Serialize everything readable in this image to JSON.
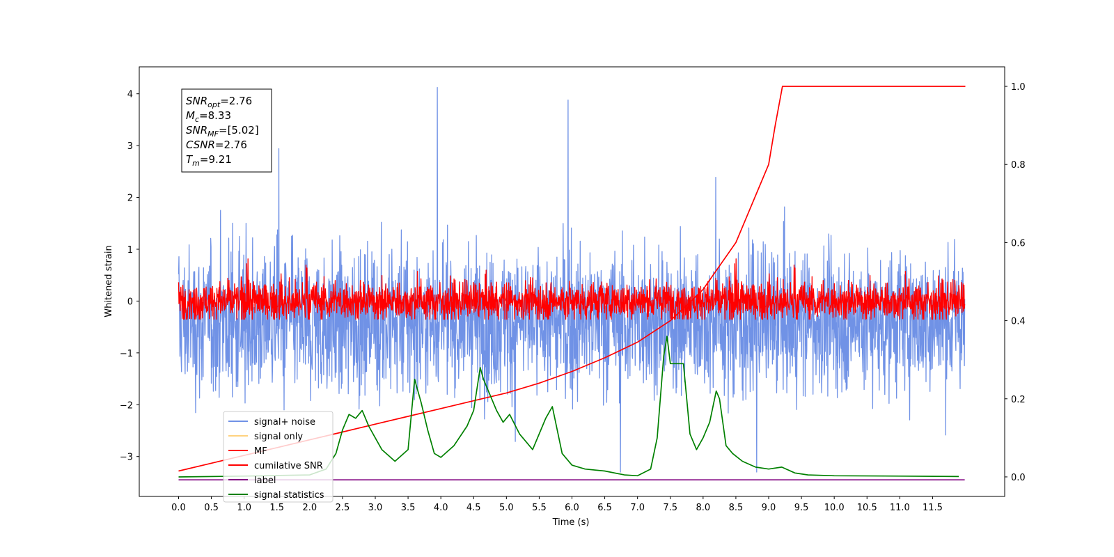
{
  "chart_data": {
    "type": "line",
    "xlabel": "Time (s)",
    "ylabel": "Whitened strain",
    "xlim": [
      -0.6,
      12.6
    ],
    "ylim": [
      -3.77,
      4.52
    ],
    "y2lim": [
      -0.05,
      1.05
    ],
    "x_ticks": [
      "0.0",
      "0.5",
      "1.0",
      "1.5",
      "2.0",
      "2.5",
      "3.0",
      "3.5",
      "4.0",
      "4.5",
      "5.0",
      "5.5",
      "6.0",
      "6.5",
      "7.0",
      "7.5",
      "8.0",
      "8.5",
      "9.0",
      "9.5",
      "10.0",
      "10.5",
      "11.0",
      "11.5"
    ],
    "y_ticks": [
      "−3",
      "−2",
      "−1",
      "0",
      "1",
      "2",
      "3",
      "4"
    ],
    "y2_ticks": [
      "0.0",
      "0.2",
      "0.4",
      "0.6",
      "0.8",
      "1.0"
    ],
    "annotation": {
      "lines": [
        {
          "sym": "SNR",
          "sub": "opt",
          "value": "=2.76"
        },
        {
          "sym": "M",
          "sub": "c",
          "value": "=8.33"
        },
        {
          "sym": "SNR",
          "sub": "MF",
          "value": "=[5.02]"
        },
        {
          "sym": "CSNR",
          "sub": "",
          "value": "=2.76"
        },
        {
          "sym": "T",
          "sub": "m",
          "value": "=9.21"
        }
      ]
    },
    "legend": {
      "location": "lower-left",
      "entries": [
        {
          "label": "signal+ noise",
          "color": "#7092e6"
        },
        {
          "label": "signal only",
          "color": "#ffd27f"
        },
        {
          "label": "MF",
          "color": "#ff0000"
        },
        {
          "label": "cumilative SNR",
          "color": "#ff0000"
        },
        {
          "label": "label",
          "color": "#800080"
        },
        {
          "label": "signal statistics",
          "color": "#008000"
        }
      ]
    },
    "series": [
      {
        "name": "signal+ noise",
        "axis": "left",
        "kind": "noise",
        "x_range": [
          0.0,
          11.99
        ],
        "center": -0.4,
        "typical_range": [
          -1.3,
          1.3
        ],
        "extreme_range": [
          -3.3,
          4.2
        ],
        "color": "#7092e6"
      },
      {
        "name": "MF",
        "axis": "left",
        "kind": "noise",
        "x_range": [
          0.0,
          11.99
        ],
        "center": 0.0,
        "typical_range": [
          -0.3,
          0.4
        ],
        "extreme_range": [
          -0.35,
          0.95
        ],
        "color": "#ff0000"
      },
      {
        "name": "cumilative SNR",
        "axis": "right",
        "x": [
          0.0,
          0.5,
          1.0,
          1.5,
          2.0,
          2.5,
          3.0,
          3.5,
          4.0,
          4.5,
          5.0,
          5.5,
          6.0,
          6.5,
          7.0,
          7.5,
          8.0,
          8.5,
          9.0,
          9.1,
          9.21,
          12.0
        ],
        "values": [
          0.015,
          0.035,
          0.055,
          0.075,
          0.095,
          0.115,
          0.135,
          0.155,
          0.175,
          0.195,
          0.215,
          0.24,
          0.27,
          0.305,
          0.345,
          0.4,
          0.48,
          0.6,
          0.8,
          0.9,
          1.0,
          1.0
        ],
        "color": "#ff0000"
      },
      {
        "name": "label",
        "axis": "left",
        "x": [
          0.0,
          11.99
        ],
        "values": [
          -3.45,
          -3.45
        ],
        "color": "#800080"
      },
      {
        "name": "signal statistics",
        "axis": "right",
        "x": [
          0.0,
          1.0,
          2.0,
          2.25,
          2.4,
          2.5,
          2.6,
          2.7,
          2.8,
          2.9,
          3.0,
          3.1,
          3.3,
          3.5,
          3.6,
          3.7,
          3.8,
          3.9,
          4.0,
          4.2,
          4.4,
          4.5,
          4.6,
          4.65,
          4.75,
          4.85,
          4.95,
          5.05,
          5.2,
          5.4,
          5.6,
          5.7,
          5.85,
          6.0,
          6.2,
          6.5,
          6.8,
          7.0,
          7.2,
          7.3,
          7.4,
          7.45,
          7.5,
          7.7,
          7.8,
          7.9,
          8.0,
          8.1,
          8.2,
          8.25,
          8.35,
          8.45,
          8.6,
          8.8,
          9.0,
          9.2,
          9.4,
          9.6,
          10.0,
          11.0,
          11.9
        ],
        "values": [
          0.0,
          0.002,
          0.005,
          0.02,
          0.06,
          0.12,
          0.16,
          0.15,
          0.17,
          0.13,
          0.1,
          0.07,
          0.04,
          0.07,
          0.25,
          0.19,
          0.12,
          0.06,
          0.05,
          0.08,
          0.13,
          0.17,
          0.28,
          0.25,
          0.21,
          0.17,
          0.14,
          0.16,
          0.11,
          0.07,
          0.15,
          0.18,
          0.06,
          0.03,
          0.02,
          0.015,
          0.005,
          0.003,
          0.02,
          0.1,
          0.31,
          0.36,
          0.29,
          0.29,
          0.11,
          0.07,
          0.1,
          0.14,
          0.22,
          0.2,
          0.08,
          0.06,
          0.04,
          0.025,
          0.02,
          0.025,
          0.01,
          0.005,
          0.003,
          0.002,
          0.001
        ],
        "color": "#008000"
      }
    ]
  }
}
